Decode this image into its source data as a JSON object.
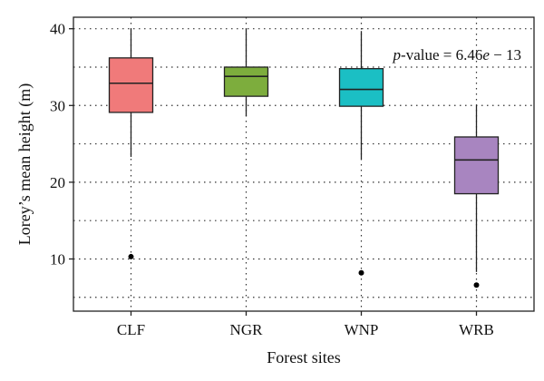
{
  "chart_data": {
    "type": "box",
    "categories": [
      "CLF",
      "NGR",
      "WNP",
      "WRB"
    ],
    "boxes": [
      {
        "category": "CLF",
        "min": 23.3,
        "q1": 29.1,
        "median": 32.9,
        "q3": 36.2,
        "max": 40.0,
        "outliers": [
          10.3
        ],
        "color": "#F07A7A"
      },
      {
        "category": "NGR",
        "min": 28.6,
        "q1": 31.2,
        "median": 33.8,
        "q3": 35.0,
        "max": 40.0,
        "outliers": [],
        "color": "#7DAD3D"
      },
      {
        "category": "WNP",
        "min": 23.0,
        "q1": 29.9,
        "median": 32.1,
        "q3": 34.8,
        "max": 39.7,
        "outliers": [
          8.2
        ],
        "color": "#1BBFC4"
      },
      {
        "category": "WRB",
        "min": 8.3,
        "q1": 18.5,
        "median": 22.9,
        "q3": 25.9,
        "max": 30.0,
        "outliers": [
          6.6
        ],
        "color": "#A885C0"
      }
    ],
    "title": "",
    "xlabel": "Forest sites",
    "ylabel": "Lorey’s mean height (m)",
    "ylim": [
      3.2,
      41.5
    ],
    "yticks": [
      10,
      20,
      30,
      40
    ],
    "grid": true,
    "annotation": {
      "italic_prefix": "p",
      "text": "-value = 6.46",
      "italic_e": "e",
      "suffix": " − 13"
    }
  }
}
